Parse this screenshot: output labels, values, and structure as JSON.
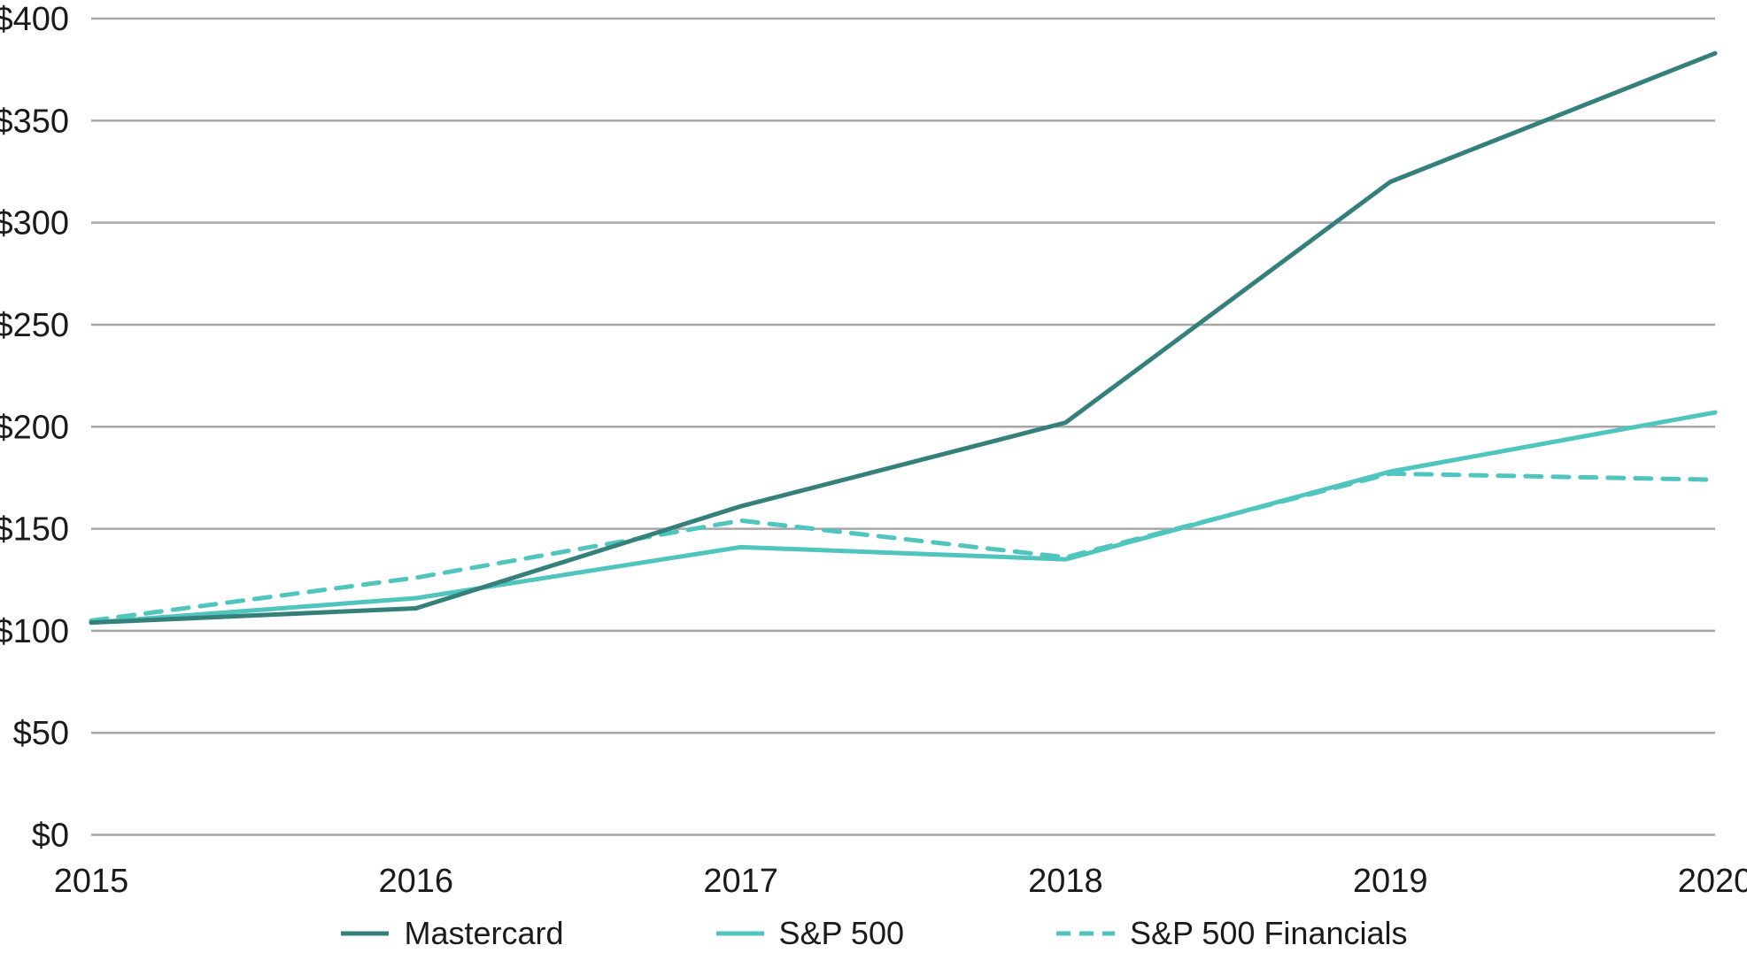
{
  "chart_data": {
    "type": "line",
    "title": "",
    "xlabel": "",
    "ylabel": "",
    "categories": [
      "2015",
      "2016",
      "2017",
      "2018",
      "2019",
      "2020"
    ],
    "series": [
      {
        "name": "Mastercard",
        "color": "#35807A",
        "style": "solid",
        "values": [
          104,
          111,
          161,
          202,
          320,
          383
        ]
      },
      {
        "name": "S&P 500",
        "color": "#4FC5BE",
        "style": "solid",
        "values": [
          104,
          116,
          141,
          135,
          178,
          207
        ]
      },
      {
        "name": "S&P 500 Financials",
        "color": "#4FC5BE",
        "style": "dashed",
        "values": [
          105,
          126,
          154,
          136,
          177,
          174
        ]
      }
    ],
    "ylim": [
      0,
      400
    ],
    "yticks": [
      {
        "value": 0,
        "label": "$0"
      },
      {
        "value": 50,
        "label": "$50"
      },
      {
        "value": 100,
        "label": "$100"
      },
      {
        "value": 150,
        "label": "$150"
      },
      {
        "value": 200,
        "label": "$200"
      },
      {
        "value": 250,
        "label": "$250"
      },
      {
        "value": 300,
        "label": "$300"
      },
      {
        "value": 350,
        "label": "$350"
      },
      {
        "value": 400,
        "label": "$400"
      }
    ],
    "grid": "horizontal",
    "gridline_color": "#A6A6A6",
    "text_color": "#1a1a1a",
    "legend_position": "bottom"
  }
}
